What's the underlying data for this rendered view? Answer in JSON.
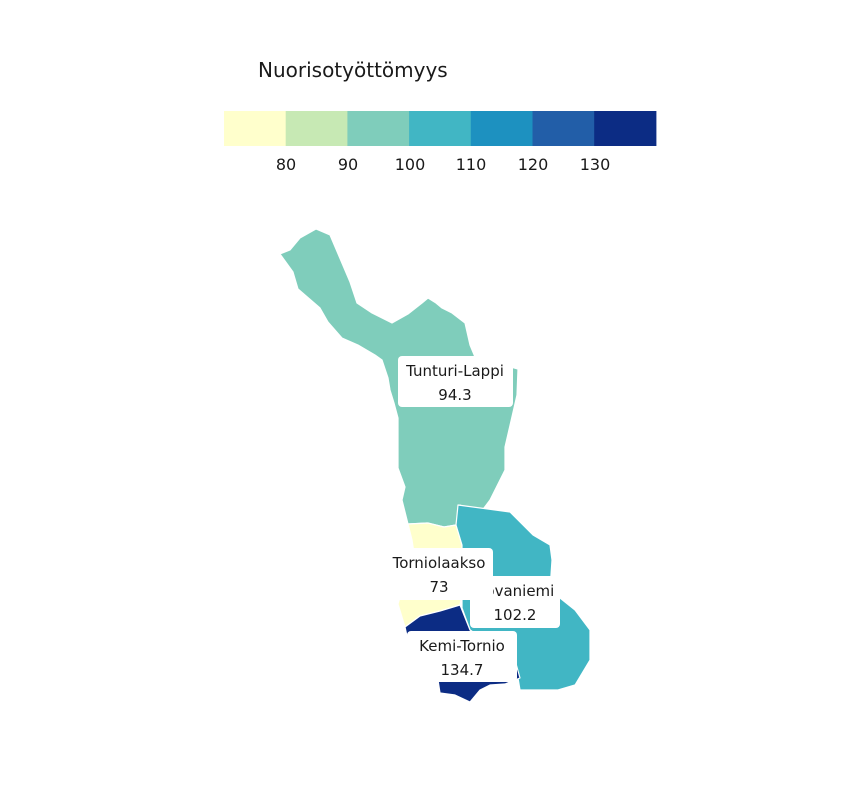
{
  "legend": {
    "title": "Nuorisotyöttömyys",
    "ticks": [
      "80",
      "90",
      "100",
      "110",
      "120",
      "130"
    ],
    "colors": [
      "#ffffcc",
      "#c7e9b4",
      "#7fcdbb",
      "#41b6c4",
      "#1d91c0",
      "#225ea8",
      "#0c2c84"
    ]
  },
  "regions": [
    {
      "name": "Tunturi-Lappi",
      "value": "94.3",
      "color": "#7fcdbb"
    },
    {
      "name": "Rovaniemi",
      "value": "102.2",
      "color": "#41b6c4"
    },
    {
      "name": "Torniolaakso",
      "value": "73",
      "color": "#ffffcc"
    },
    {
      "name": "Kemi-Tornio",
      "value": "134.7",
      "color": "#0c2c84"
    }
  ]
}
